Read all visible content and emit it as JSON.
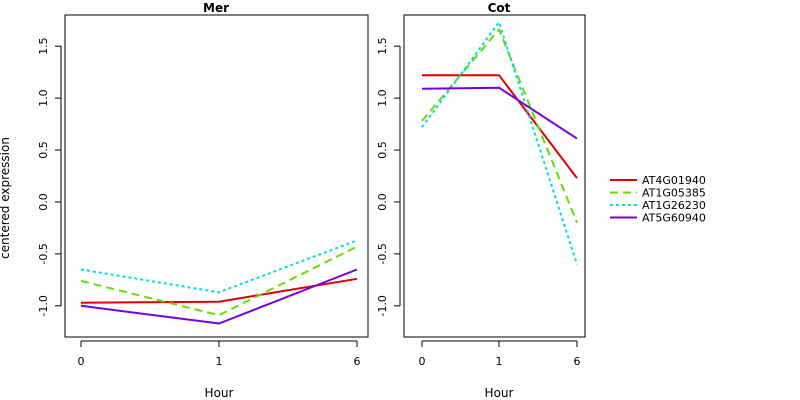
{
  "chart_data": [
    {
      "type": "line",
      "title": "Mer",
      "xlabel": "Hour",
      "ylabel": "centered expression",
      "categories": [
        "0",
        "1",
        "6"
      ],
      "ylim": [
        -1.3,
        1.8
      ],
      "yticks": [
        "-1.0",
        "-0.5",
        "0.0",
        "0.5",
        "1.0",
        "1.5"
      ],
      "series": [
        {
          "name": "AT4G01940",
          "values": [
            -0.97,
            -0.96,
            -0.74
          ]
        },
        {
          "name": "AT1G05385",
          "values": [
            -0.76,
            -1.09,
            -0.43
          ]
        },
        {
          "name": "AT1G26230",
          "values": [
            -0.65,
            -0.87,
            -0.37
          ]
        },
        {
          "name": "AT5G60940",
          "values": [
            -1.0,
            -1.17,
            -0.65
          ]
        }
      ]
    },
    {
      "type": "line",
      "title": "Cot",
      "xlabel": "Hour",
      "categories": [
        "0",
        "1",
        "6"
      ],
      "ylim": [
        -1.3,
        1.8
      ],
      "yticks": [
        "-1.0",
        "-0.5",
        "0.0",
        "0.5",
        "1.0",
        "1.5"
      ],
      "series": [
        {
          "name": "AT4G01940",
          "values": [
            1.22,
            1.22,
            0.23
          ]
        },
        {
          "name": "AT1G05385",
          "values": [
            0.78,
            1.66,
            -0.2
          ]
        },
        {
          "name": "AT1G26230",
          "values": [
            0.72,
            1.73,
            -0.6
          ]
        },
        {
          "name": "AT5G60940",
          "values": [
            1.09,
            1.1,
            0.61
          ]
        }
      ]
    }
  ],
  "legend": {
    "placement": "right",
    "entries": [
      {
        "label": "AT4G01940",
        "color": "#dd0000",
        "dash": "solid"
      },
      {
        "label": "AT1G05385",
        "color": "#66dd00",
        "dash": "dashed"
      },
      {
        "label": "AT1G26230",
        "color": "#00dddd",
        "dash": "dotted"
      },
      {
        "label": "AT5G60940",
        "color": "#7700dd",
        "dash": "solid"
      }
    ]
  }
}
